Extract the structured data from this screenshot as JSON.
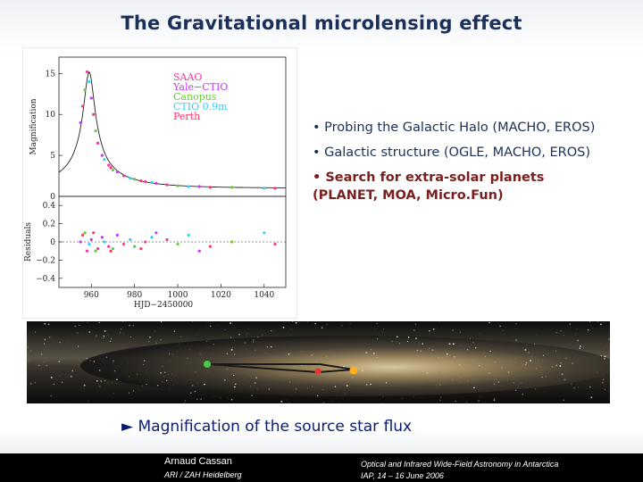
{
  "slide": {
    "title": "The Gravitational microlensing effect",
    "bullets": [
      {
        "text": "• Probing the Galactic Halo (MACHO, EROS)"
      },
      {
        "text": "• Galactic structure (OGLE, MACHO, EROS)"
      },
      {
        "text": "• Search for extra-solar planets (PLANET, MOA, Micro.Fun)"
      }
    ],
    "caption": "► Magnification of the source star flux"
  },
  "footer": {
    "author": "Arnaud Cassan",
    "affiliation": "ARI / ZAH Heidelberg",
    "conference": "Optical and Infrared Wide-Field Astronomy in Antarctica",
    "venue": "IAP, 14 – 16 June 2006"
  },
  "chart_data": {
    "type": "scatter",
    "title": "",
    "xlabel": "HJD−2450000",
    "x_ticks": [
      "960",
      "980",
      "1000",
      "1020",
      "1040"
    ],
    "xlim": [
      945,
      1050
    ],
    "panels": [
      {
        "ylabel": "Magnification",
        "ylim": [
          0,
          17
        ],
        "y_ticks": [
          "0",
          "5",
          "10",
          "15"
        ],
        "series": [
          {
            "name": "SAAO",
            "color": "#ff3399",
            "x": [
              958,
              963,
              968,
              975,
              985,
              995
            ],
            "y": [
              15.2,
              6.5,
              3.8,
              2.5,
              1.8,
              1.4
            ]
          },
          {
            "name": "Yale−CTIO",
            "color": "#cc33ff",
            "x": [
              955,
              960,
              965,
              972,
              990,
              1010
            ],
            "y": [
              9.0,
              12.0,
              5.0,
              3.0,
              1.6,
              1.2
            ]
          },
          {
            "name": "Canopus",
            "color": "#66cc33",
            "x": [
              957,
              962,
              970,
              980,
              1000,
              1025
            ],
            "y": [
              13.0,
              8.0,
              3.2,
              2.1,
              1.3,
              1.1
            ]
          },
          {
            "name": "CTIO 0.9m",
            "color": "#33ccff",
            "x": [
              959,
              966,
              978,
              988,
              1005,
              1040
            ],
            "y": [
              14.0,
              4.5,
              2.2,
              1.7,
              1.2,
              1.0
            ]
          },
          {
            "name": "Perth",
            "color": "#ff3366",
            "x": [
              956,
              961,
              969,
              983,
              1015,
              1045
            ],
            "y": [
              11.0,
              10.0,
              3.5,
              1.9,
              1.1,
              1.0
            ]
          }
        ]
      },
      {
        "ylabel": "Residuals",
        "ylim": [
          -0.5,
          0.5
        ],
        "y_ticks": [
          "0.4",
          "0.2",
          "0",
          "−0.2",
          "−0.4"
        ]
      }
    ]
  }
}
